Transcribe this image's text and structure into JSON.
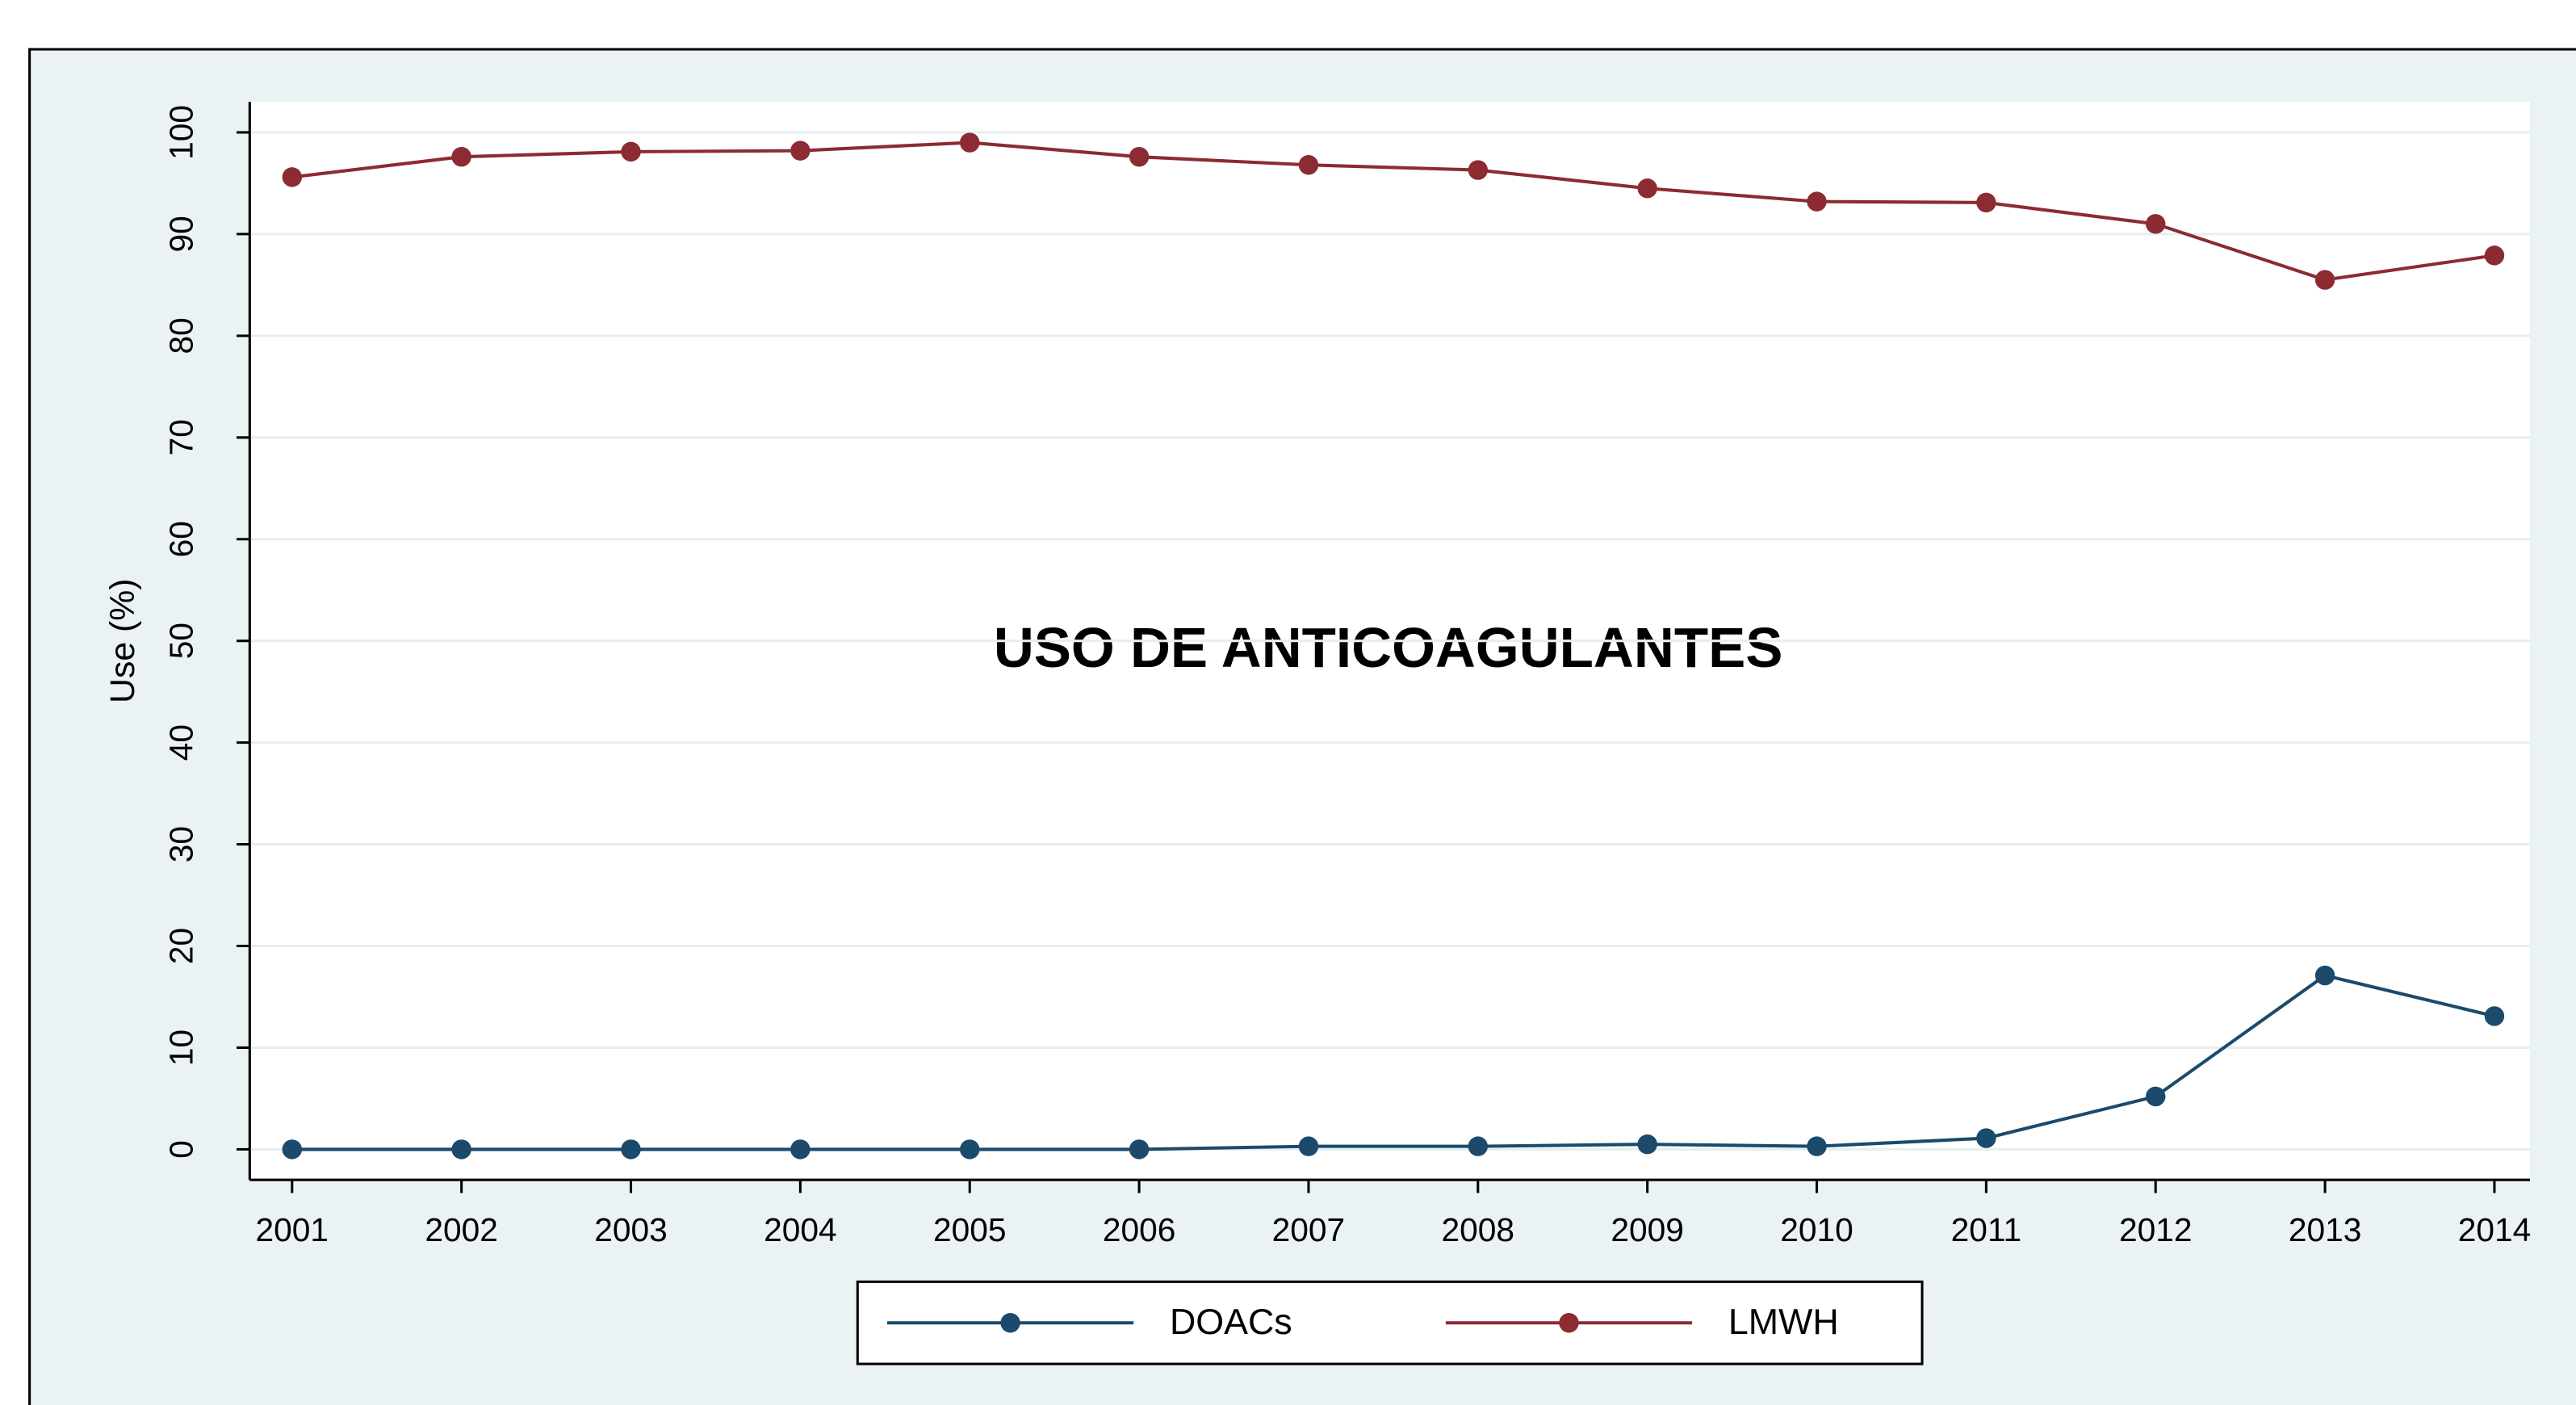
{
  "chart_data": {
    "type": "line",
    "annotation": "USO DE ANTICOAGULANTES",
    "y_label": "Use (%)",
    "x": [
      2001,
      2002,
      2003,
      2004,
      2005,
      2006,
      2007,
      2008,
      2009,
      2010,
      2011,
      2012,
      2013,
      2014
    ],
    "series": [
      {
        "name": "DOACs",
        "color": "#1b4a6d",
        "values": [
          0,
          0,
          0,
          0,
          0,
          0,
          0.3,
          0.3,
          0.5,
          0.3,
          1.1,
          5.2,
          17.1,
          13.1
        ]
      },
      {
        "name": "LMWH",
        "color": "#8c2b31",
        "values": [
          95.6,
          97.6,
          98.1,
          98.2,
          99.0,
          97.6,
          96.8,
          96.3,
          94.5,
          93.2,
          93.1,
          91.0,
          85.5,
          87.9
        ]
      }
    ],
    "xlim": [
      2000.75,
      2014.21
    ],
    "xticks": [
      2001,
      2002,
      2003,
      2004,
      2005,
      2006,
      2007,
      2008,
      2009,
      2010,
      2011,
      2012,
      2013,
      2014
    ],
    "ylim": [
      -3,
      103
    ],
    "yticks": [
      0,
      10,
      20,
      30,
      40,
      50,
      60,
      70,
      80,
      90,
      100
    ],
    "grid": true,
    "legend": "bottom"
  }
}
